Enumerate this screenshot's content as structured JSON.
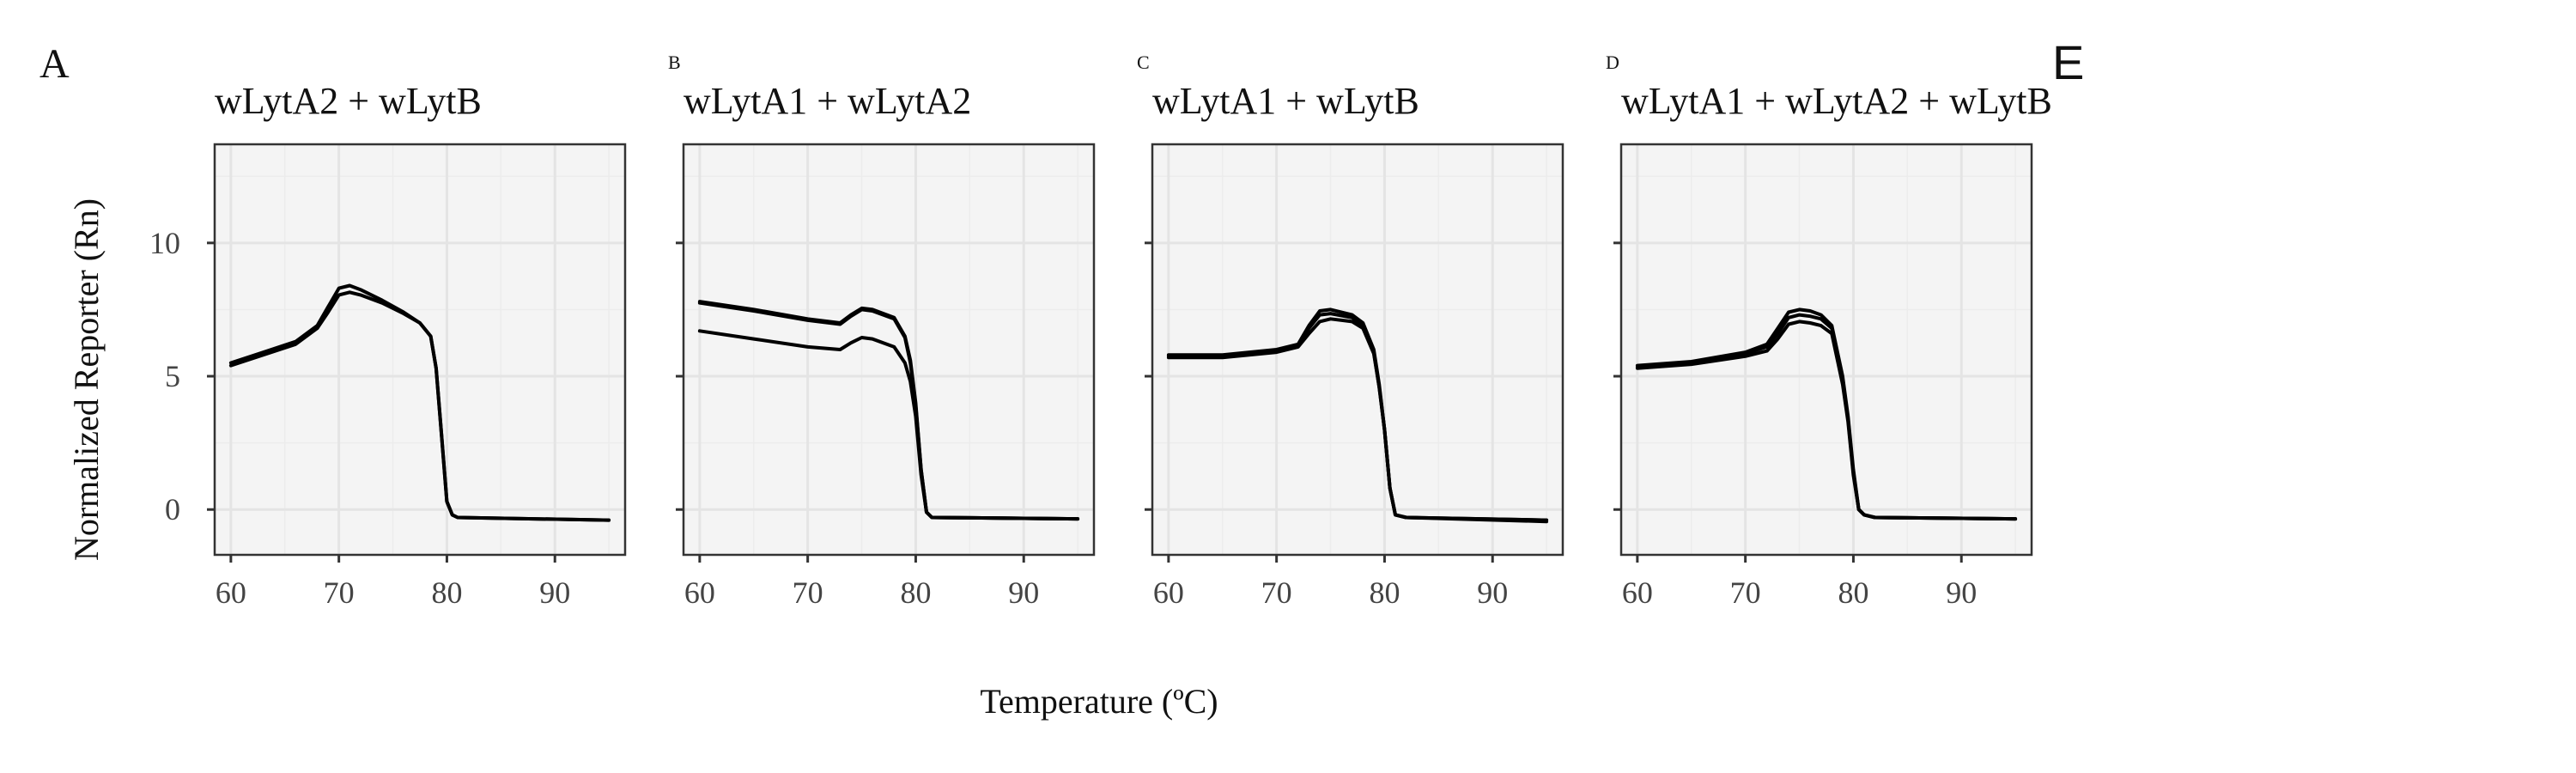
{
  "figure": {
    "ylabel": "Normalized Reporter (Rn)",
    "xlabel": "Temperature (ºC)",
    "extra_label": "E"
  },
  "chart_data": [
    {
      "type": "line",
      "panel_label": "A",
      "title": "wLytA2 + wLytB",
      "xlim": [
        58.5,
        96.5
      ],
      "ylim": [
        -1.7,
        13.7
      ],
      "xticks": [
        60,
        70,
        80,
        90
      ],
      "yticks": [
        0,
        5,
        10
      ],
      "show_y_tick_labels": true,
      "grid": true,
      "series": [
        {
          "x": [
            60,
            63,
            66,
            68,
            69,
            70,
            71,
            72,
            74,
            76,
            77.5,
            78.5,
            79,
            79.5,
            80,
            80.5,
            81,
            95
          ],
          "y": [
            5.5,
            5.9,
            6.3,
            6.9,
            7.6,
            8.3,
            8.4,
            8.25,
            7.85,
            7.4,
            7.0,
            6.5,
            5.3,
            2.8,
            0.3,
            -0.2,
            -0.3,
            -0.4
          ]
        },
        {
          "x": [
            60,
            63,
            66,
            68,
            69,
            70,
            71,
            72,
            74,
            76,
            77.5,
            78.5,
            79,
            79.5,
            80,
            80.5,
            81,
            95
          ],
          "y": [
            5.4,
            5.8,
            6.2,
            6.8,
            7.4,
            8.05,
            8.15,
            8.05,
            7.75,
            7.35,
            7.0,
            6.5,
            5.3,
            2.8,
            0.3,
            -0.2,
            -0.3,
            -0.4
          ]
        }
      ]
    },
    {
      "type": "line",
      "panel_label": "B",
      "title": "wLytA1 + wLytA2",
      "xlim": [
        58.5,
        96.5
      ],
      "ylim": [
        -1.7,
        13.7
      ],
      "xticks": [
        60,
        70,
        80,
        90
      ],
      "yticks": [
        0,
        5,
        10
      ],
      "show_y_tick_labels": false,
      "grid": true,
      "series": [
        {
          "x": [
            60,
            65,
            70,
            73,
            74,
            75,
            76,
            78,
            79,
            79.5,
            80,
            80.5,
            81,
            81.5,
            95
          ],
          "y": [
            7.8,
            7.5,
            7.15,
            7.0,
            7.3,
            7.55,
            7.5,
            7.2,
            6.5,
            5.6,
            4.0,
            1.5,
            -0.1,
            -0.3,
            -0.35
          ]
        },
        {
          "x": [
            60,
            65,
            70,
            73,
            74,
            75,
            76,
            78,
            79,
            79.5,
            80,
            80.5,
            81,
            81.5,
            95
          ],
          "y": [
            7.75,
            7.45,
            7.1,
            6.95,
            7.25,
            7.5,
            7.45,
            7.15,
            6.45,
            5.5,
            3.9,
            1.5,
            -0.1,
            -0.3,
            -0.35
          ]
        },
        {
          "x": [
            60,
            65,
            70,
            73,
            74,
            75,
            76,
            78,
            79,
            79.5,
            80,
            80.5,
            81,
            81.5,
            95
          ],
          "y": [
            6.7,
            6.4,
            6.1,
            6.0,
            6.25,
            6.45,
            6.4,
            6.1,
            5.5,
            4.8,
            3.5,
            1.3,
            -0.1,
            -0.3,
            -0.35
          ]
        }
      ]
    },
    {
      "type": "line",
      "panel_label": "C",
      "title": "wLytA1 + wLytB",
      "xlim": [
        58.5,
        96.5
      ],
      "ylim": [
        -1.7,
        13.7
      ],
      "xticks": [
        60,
        70,
        80,
        90
      ],
      "yticks": [
        0,
        5,
        10
      ],
      "show_y_tick_labels": false,
      "grid": true,
      "series": [
        {
          "x": [
            60,
            65,
            70,
            72,
            73,
            74,
            75,
            77,
            78,
            79,
            79.5,
            80,
            80.5,
            81,
            82,
            95
          ],
          "y": [
            5.8,
            5.8,
            6.0,
            6.2,
            6.9,
            7.45,
            7.5,
            7.3,
            7.0,
            6.0,
            4.7,
            3.0,
            0.8,
            -0.2,
            -0.3,
            -0.4
          ]
        },
        {
          "x": [
            60,
            65,
            70,
            72,
            73,
            74,
            75,
            77,
            78,
            79,
            79.5,
            80,
            80.5,
            81,
            82,
            95
          ],
          "y": [
            5.75,
            5.75,
            5.95,
            6.15,
            6.8,
            7.3,
            7.35,
            7.2,
            6.9,
            5.9,
            4.6,
            3.0,
            0.8,
            -0.2,
            -0.3,
            -0.4
          ]
        },
        {
          "x": [
            60,
            65,
            70,
            72,
            73,
            74,
            75,
            77,
            78,
            79,
            79.5,
            80,
            80.5,
            81,
            82,
            95
          ],
          "y": [
            5.7,
            5.7,
            5.9,
            6.1,
            6.6,
            7.05,
            7.15,
            7.05,
            6.8,
            5.85,
            4.6,
            3.0,
            0.8,
            -0.2,
            -0.3,
            -0.45
          ]
        }
      ]
    },
    {
      "type": "line",
      "panel_label": "D",
      "title": "wLytA1 + wLytA2 + wLytB",
      "xlim": [
        58.5,
        96.5
      ],
      "ylim": [
        -1.7,
        13.7
      ],
      "xticks": [
        60,
        70,
        80,
        90
      ],
      "yticks": [
        0,
        5,
        10
      ],
      "show_y_tick_labels": false,
      "grid": true,
      "series": [
        {
          "x": [
            60,
            65,
            70,
            72,
            73,
            74,
            75,
            76,
            77,
            78,
            79,
            79.5,
            80,
            80.5,
            81,
            82,
            95
          ],
          "y": [
            5.4,
            5.55,
            5.9,
            6.2,
            6.8,
            7.4,
            7.5,
            7.45,
            7.3,
            6.9,
            5.0,
            3.5,
            1.5,
            0.0,
            -0.2,
            -0.3,
            -0.35
          ]
        },
        {
          "x": [
            60,
            65,
            70,
            72,
            73,
            74,
            75,
            76,
            77,
            78,
            79,
            79.5,
            80,
            80.5,
            81,
            82,
            95
          ],
          "y": [
            5.35,
            5.5,
            5.85,
            6.1,
            6.6,
            7.2,
            7.3,
            7.25,
            7.15,
            6.8,
            4.9,
            3.4,
            1.4,
            0.0,
            -0.2,
            -0.3,
            -0.35
          ]
        },
        {
          "x": [
            60,
            65,
            70,
            72,
            73,
            74,
            75,
            76,
            77,
            78,
            79,
            79.5,
            80,
            80.5,
            81,
            82,
            95
          ],
          "y": [
            5.3,
            5.45,
            5.75,
            5.95,
            6.4,
            6.95,
            7.05,
            7.0,
            6.9,
            6.6,
            4.7,
            3.3,
            1.3,
            0.0,
            -0.2,
            -0.3,
            -0.35
          ]
        }
      ]
    }
  ]
}
